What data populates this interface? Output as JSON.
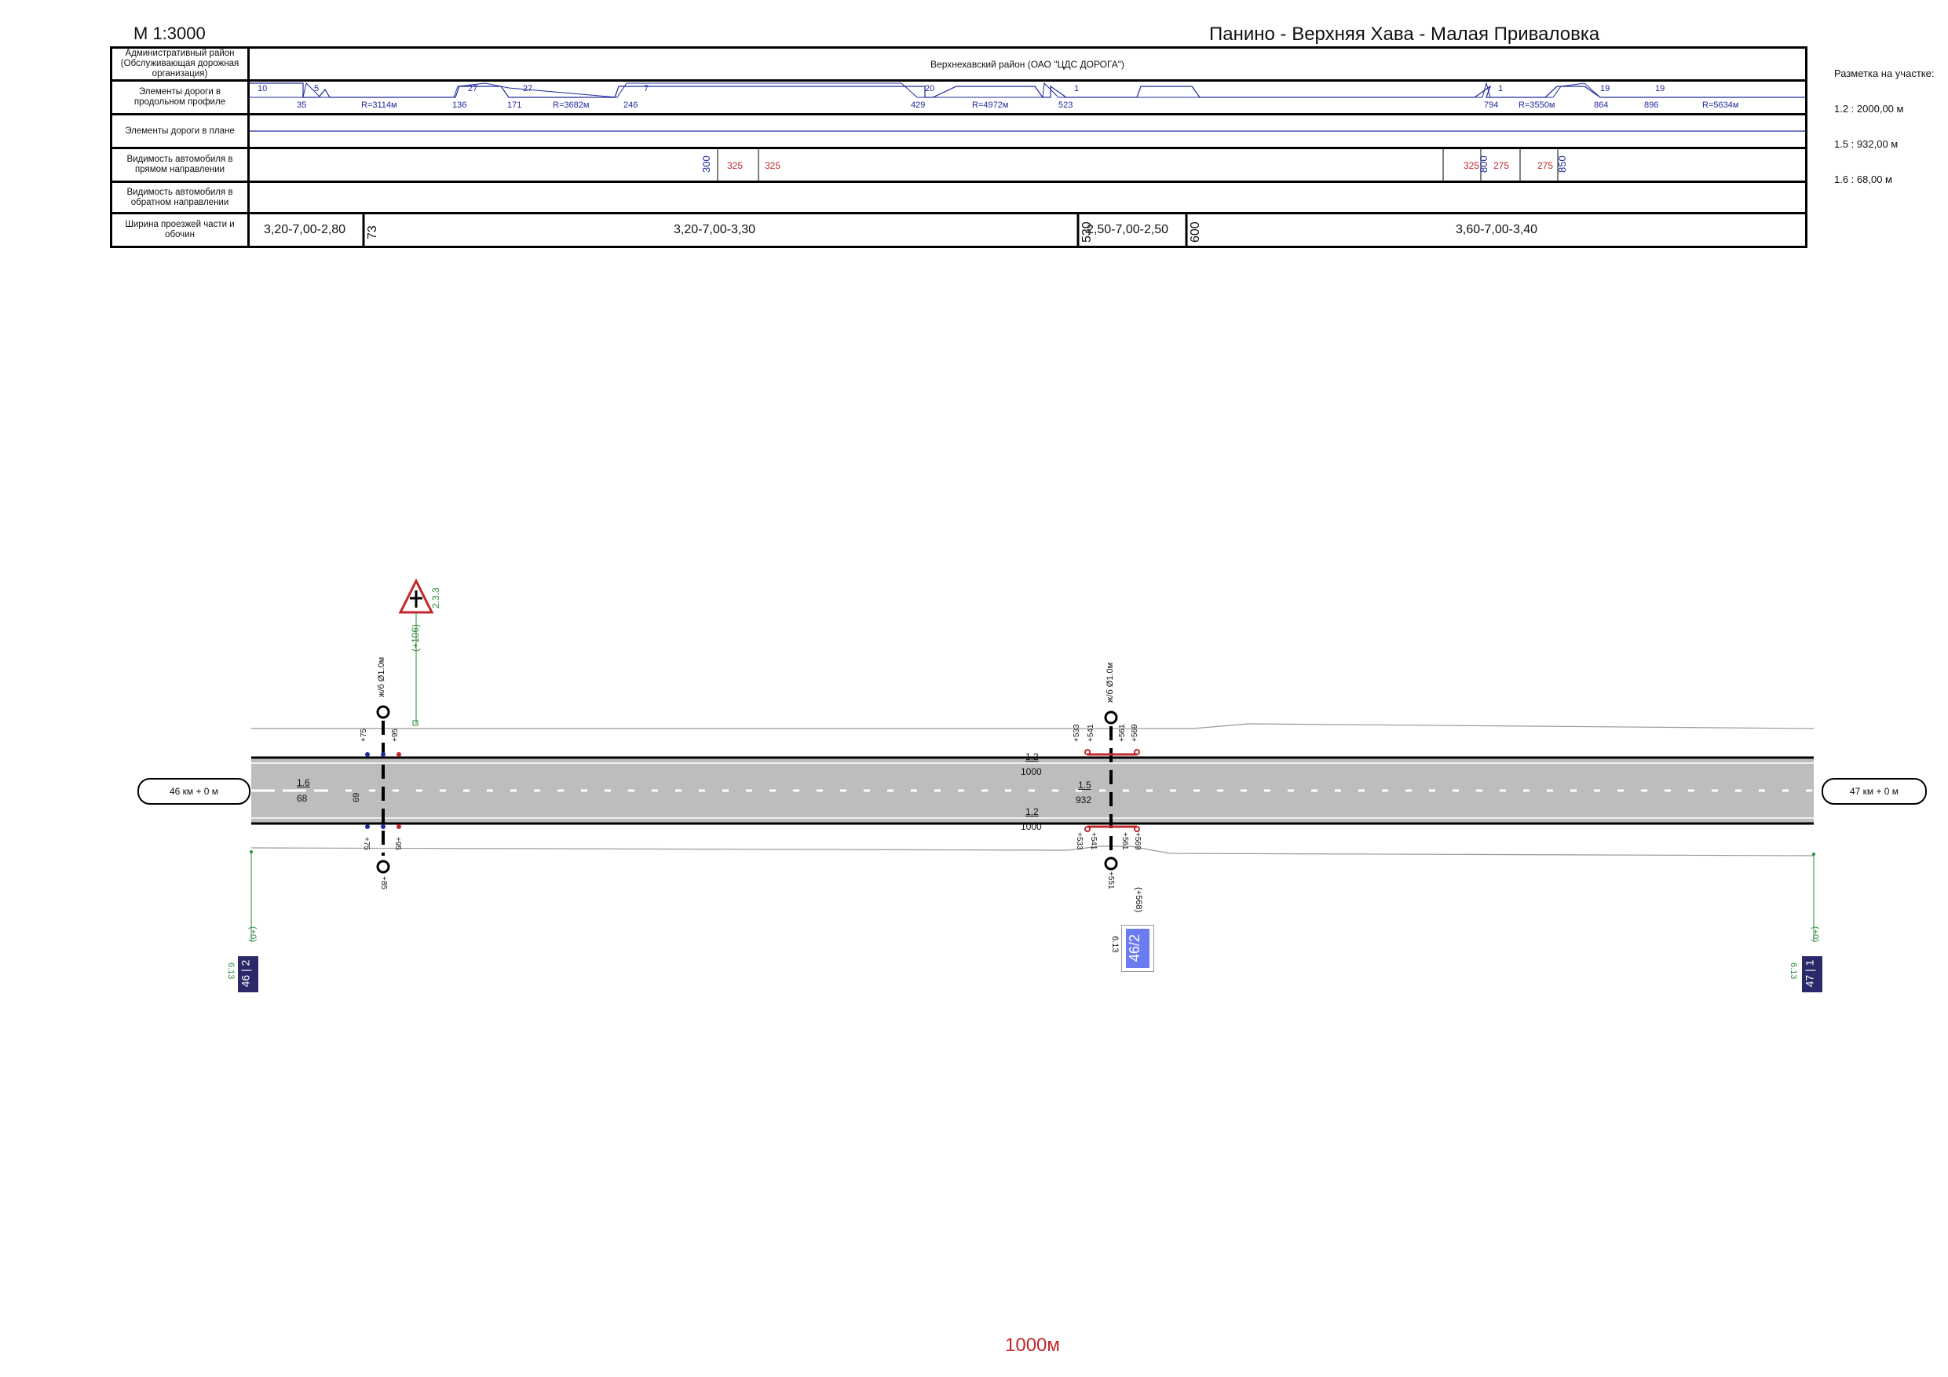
{
  "header": {
    "scale": "М 1:3000",
    "title": "Панино - Верхняя Хава - Малая Приваловка",
    "summary_title": "Разметка на участке:",
    "summary_lines": [
      "1.2 : 2000,00 м",
      "1.5 : 932,00 м",
      "1.6 : 68,00 м"
    ]
  },
  "table": {
    "rows": [
      {
        "label": "Административный район (Обслуживающая дорожная организация)",
        "value": "Верхнехавский район (ОАО \"ЦДС ДОРОГА\")"
      },
      {
        "label": "Элементы дороги в продольном профиле"
      },
      {
        "label": "Элементы дороги в плане"
      },
      {
        "label": "Видимость автомобиля в прямом направлении"
      },
      {
        "label": "Видимость автомобиля в обратном направлении"
      },
      {
        "label": "Ширина проезжей части и обочин"
      }
    ],
    "profile": {
      "slopes": [
        "10",
        "5",
        "27",
        "27",
        "7",
        "20",
        "1",
        "1",
        "19",
        "19"
      ],
      "stations": [
        "35",
        "136",
        "171",
        "246",
        "429",
        "523",
        "794",
        "864",
        "896"
      ],
      "radii": [
        "R=3114м",
        "R=3682м",
        "R=4972м",
        "R=3550м",
        "R=5634м"
      ]
    },
    "visibility": {
      "blue": [
        "300",
        "800",
        "850"
      ],
      "red": [
        "325",
        "325",
        "325",
        "275",
        "275"
      ]
    },
    "widths": {
      "segments": [
        "3,20-7,00-2,80",
        "3,20-7,00-3,30",
        "2,50-7,00-2,50",
        "3,60-7,00-3,40"
      ],
      "breaks": [
        "73",
        "530",
        "600"
      ]
    }
  },
  "plan": {
    "km_start": "46 км + 0 м",
    "km_end": "47 км + 0 м",
    "pipe_label": "ж/б Ø1.0м",
    "marks": {
      "m16": "1.6",
      "m16_len": "68",
      "m12": "1.2",
      "m12_len": "1000",
      "m15": "1.5",
      "m15_len": "932",
      "m69": "69"
    },
    "offsets": [
      "+75",
      "+95",
      "+85",
      "+533",
      "+541",
      "+561",
      "+569",
      "+551",
      "+85"
    ],
    "sign_warning": {
      "code": "2.3.3",
      "offset": "(+106)"
    },
    "sign_start": {
      "label": "46 | 2",
      "code": "6.13",
      "offset": "(+0)"
    },
    "sign_mid": {
      "label": "46/2",
      "code": "6.13",
      "offset": "(+568)"
    },
    "sign_end": {
      "label": "47 | 1",
      "code": "6.13",
      "offset": "(+0)"
    }
  },
  "footer": {
    "length": "1000м"
  },
  "colors": {
    "blue": "#1f2a9a",
    "red": "#c0282a",
    "green": "#2e8b3a",
    "road": "#bdbdbd"
  }
}
